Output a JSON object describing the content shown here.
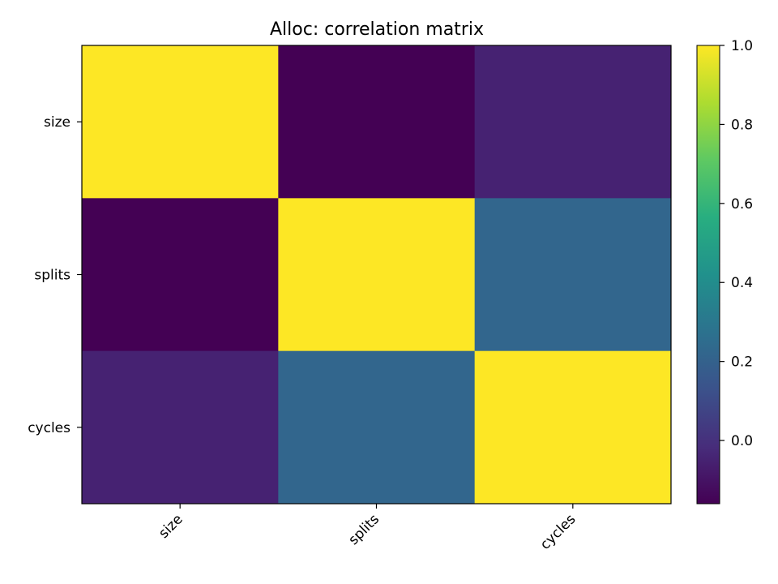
{
  "chart_data": {
    "type": "heatmap",
    "title": "Alloc: correlation matrix",
    "rows": [
      "size",
      "splits",
      "cycles"
    ],
    "columns": [
      "size",
      "splits",
      "cycles"
    ],
    "values": [
      [
        1.0,
        -0.16,
        -0.05
      ],
      [
        -0.16,
        1.0,
        0.22
      ],
      [
        -0.05,
        0.22,
        1.0
      ]
    ],
    "colormap": "viridis",
    "colorbar": {
      "min": -0.16,
      "max": 1.0,
      "ticks": [
        0.0,
        0.2,
        0.4,
        0.6,
        0.8,
        1.0
      ],
      "tick_labels": [
        "0.0",
        "0.2",
        "0.4",
        "0.6",
        "0.8",
        "1.0"
      ]
    },
    "grid": false
  }
}
